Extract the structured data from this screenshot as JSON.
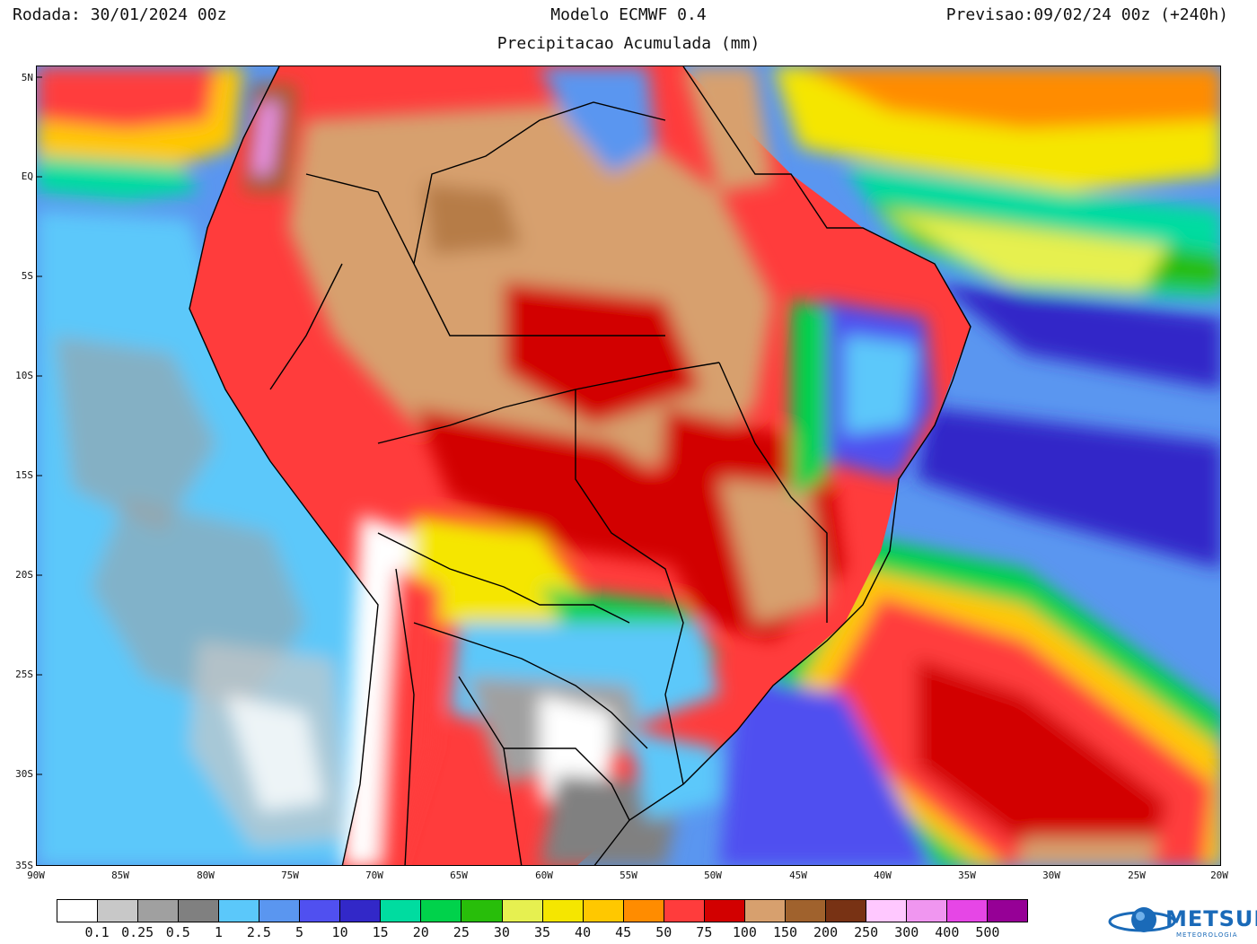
{
  "header": {
    "run": "Rodada: 30/01/2024 00z",
    "model": "Modelo ECMWF 0.4",
    "forecast": "Previsao:09/02/24 00z (+240h)",
    "subtitle": "Precipitacao Acumulada (mm)"
  },
  "axes": {
    "lat_labels": [
      "5N",
      "EQ",
      "5S",
      "10S",
      "15S",
      "20S",
      "25S",
      "30S",
      "35S"
    ],
    "lon_labels": [
      "90W",
      "85W",
      "80W",
      "75W",
      "70W",
      "65W",
      "60W",
      "55W",
      "50W",
      "45W",
      "40W",
      "35W",
      "30W",
      "25W",
      "20W"
    ]
  },
  "legend": {
    "colors": [
      "#ffffff",
      "#c8c8c8",
      "#a0a0a0",
      "#808080",
      "#5bc8fa",
      "#5a96f0",
      "#5050f0",
      "#3228c8",
      "#00dca0",
      "#00d24b",
      "#28be0a",
      "#e6f050",
      "#f5e600",
      "#ffc800",
      "#ff8c00",
      "#ff3c3c",
      "#d20000",
      "#d7a06e",
      "#a0622d",
      "#783214",
      "#ffc8ff",
      "#f096f0",
      "#e646e6",
      "#960096"
    ],
    "labels": [
      "0.1",
      "0.25",
      "0.5",
      "1",
      "2.5",
      "5",
      "10",
      "15",
      "20",
      "25",
      "30",
      "35",
      "40",
      "45",
      "50",
      "75",
      "100",
      "150",
      "200",
      "250",
      "300",
      "400",
      "500"
    ]
  },
  "logo": {
    "name": "METSUL",
    "tagline": "METEOROLOGIA"
  }
}
